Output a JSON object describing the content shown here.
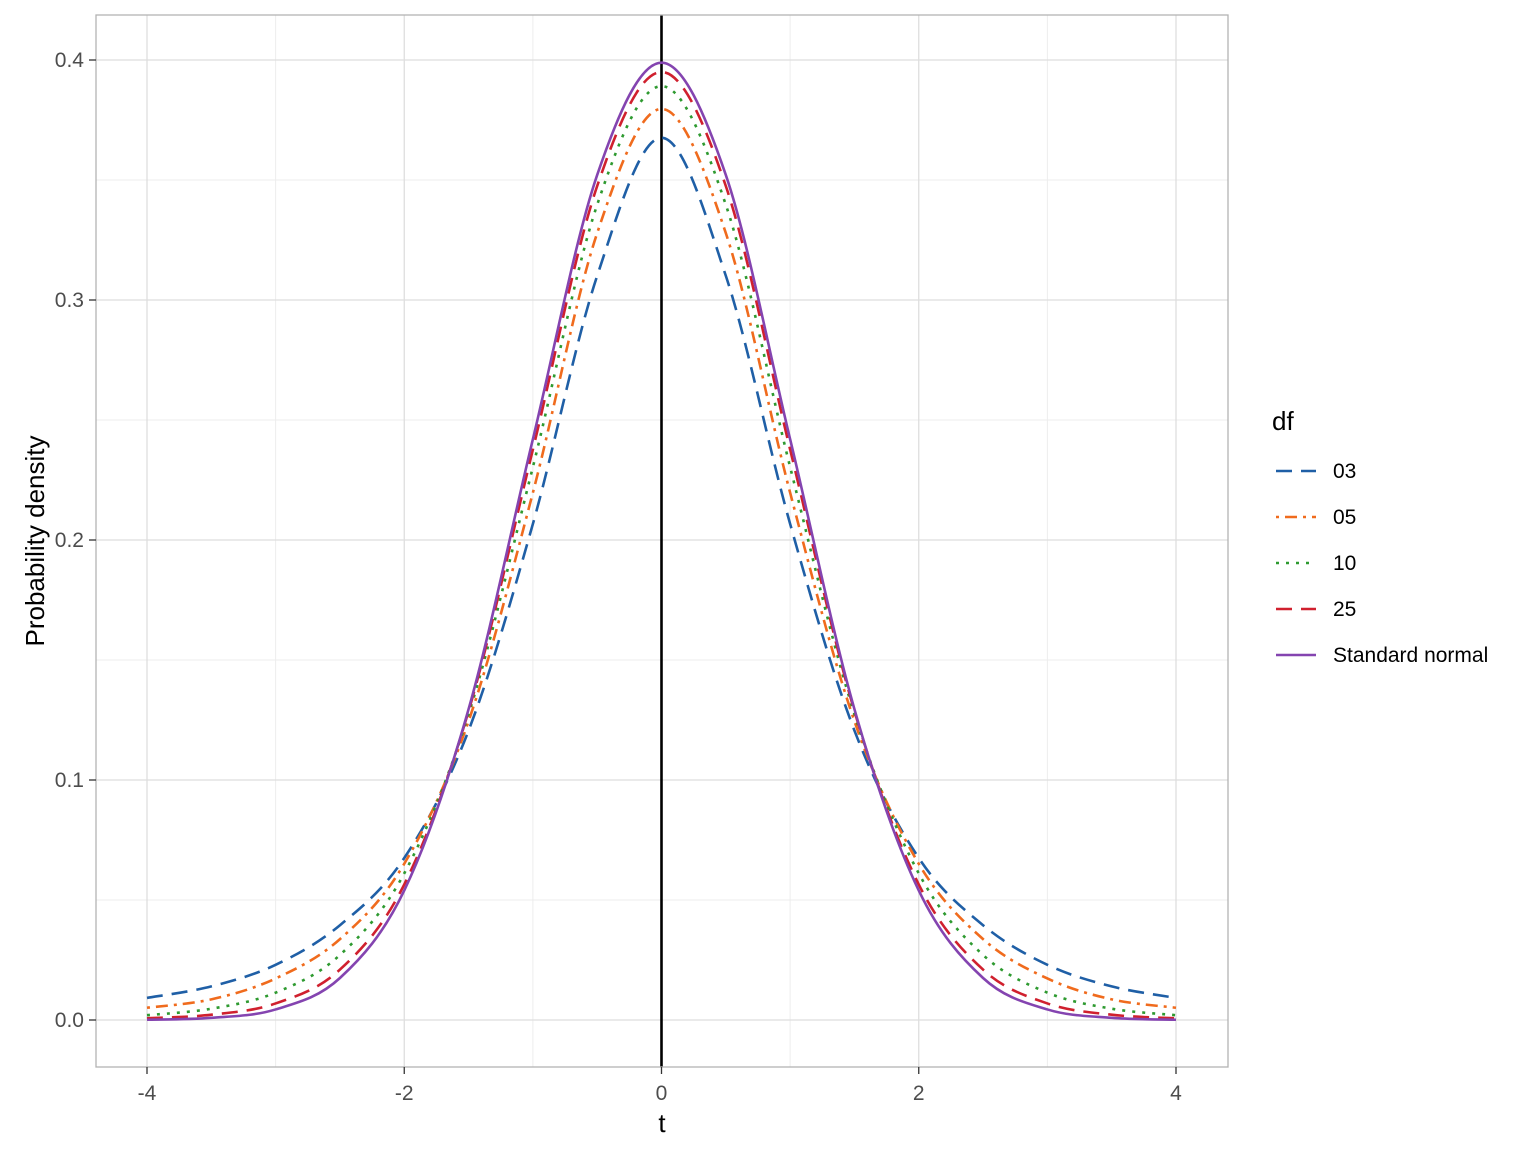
{
  "chart_data": {
    "type": "line",
    "title": "",
    "xlabel": "t",
    "ylabel": "Probability density",
    "xlim": [
      -4,
      4
    ],
    "ylim": [
      0,
      0.4
    ],
    "x_ticks": [
      -4,
      -2,
      0,
      2,
      4
    ],
    "x_tick_labels": [
      "-4",
      "-2",
      "0",
      "2",
      "4"
    ],
    "y_ticks": [
      0,
      0.1,
      0.2,
      0.3,
      0.4
    ],
    "y_tick_labels": [
      "0.0",
      "0.1",
      "0.2",
      "0.3",
      "0.4"
    ],
    "grid": true,
    "vertical_reference_line": {
      "x": 0,
      "color": "#000000"
    },
    "x": [
      -4,
      -3.5,
      -3,
      -2.5,
      -2,
      -1.5,
      -1,
      -0.5,
      0,
      0.5,
      1,
      1.5,
      2,
      2.5,
      3,
      3.5,
      4
    ],
    "legend": {
      "title": "df",
      "position": "right"
    },
    "series": [
      {
        "name": "03",
        "color": "#1f5fa6",
        "dash": "dashed",
        "values": [
          0.0092,
          0.014,
          0.023,
          0.0395,
          0.0675,
          0.1206,
          0.2067,
          0.3101,
          0.3676,
          0.3101,
          0.2067,
          0.1206,
          0.0675,
          0.0395,
          0.023,
          0.014,
          0.0092
        ]
      },
      {
        "name": "05",
        "color": "#f06b1d",
        "dash": "dotdash",
        "values": [
          0.0051,
          0.0086,
          0.0173,
          0.0337,
          0.0651,
          0.1245,
          0.2197,
          0.3279,
          0.3796,
          0.3279,
          0.2197,
          0.1245,
          0.0651,
          0.0337,
          0.0173,
          0.0086,
          0.0051
        ]
      },
      {
        "name": "10",
        "color": "#2e9a30",
        "dash": "dotted",
        "values": [
          0.002,
          0.0047,
          0.0114,
          0.0271,
          0.0611,
          0.1274,
          0.2304,
          0.3397,
          0.3891,
          0.3397,
          0.2304,
          0.1274,
          0.0611,
          0.0271,
          0.0114,
          0.0047,
          0.002
        ]
      },
      {
        "name": "25",
        "color": "#d0202e",
        "dash": "dashed",
        "values": [
          0.0007,
          0.0022,
          0.0069,
          0.021,
          0.0565,
          0.1287,
          0.2377,
          0.3475,
          0.395,
          0.3475,
          0.2377,
          0.1287,
          0.0565,
          0.021,
          0.0069,
          0.0022,
          0.0007
        ]
      },
      {
        "name": "Standard normal",
        "color": "#8444b0",
        "dash": "solid",
        "values": [
          0.0001,
          0.0009,
          0.0044,
          0.0175,
          0.054,
          0.1295,
          0.242,
          0.3521,
          0.3989,
          0.3521,
          0.242,
          0.1295,
          0.054,
          0.0175,
          0.0044,
          0.0009,
          0.0001
        ]
      }
    ]
  }
}
